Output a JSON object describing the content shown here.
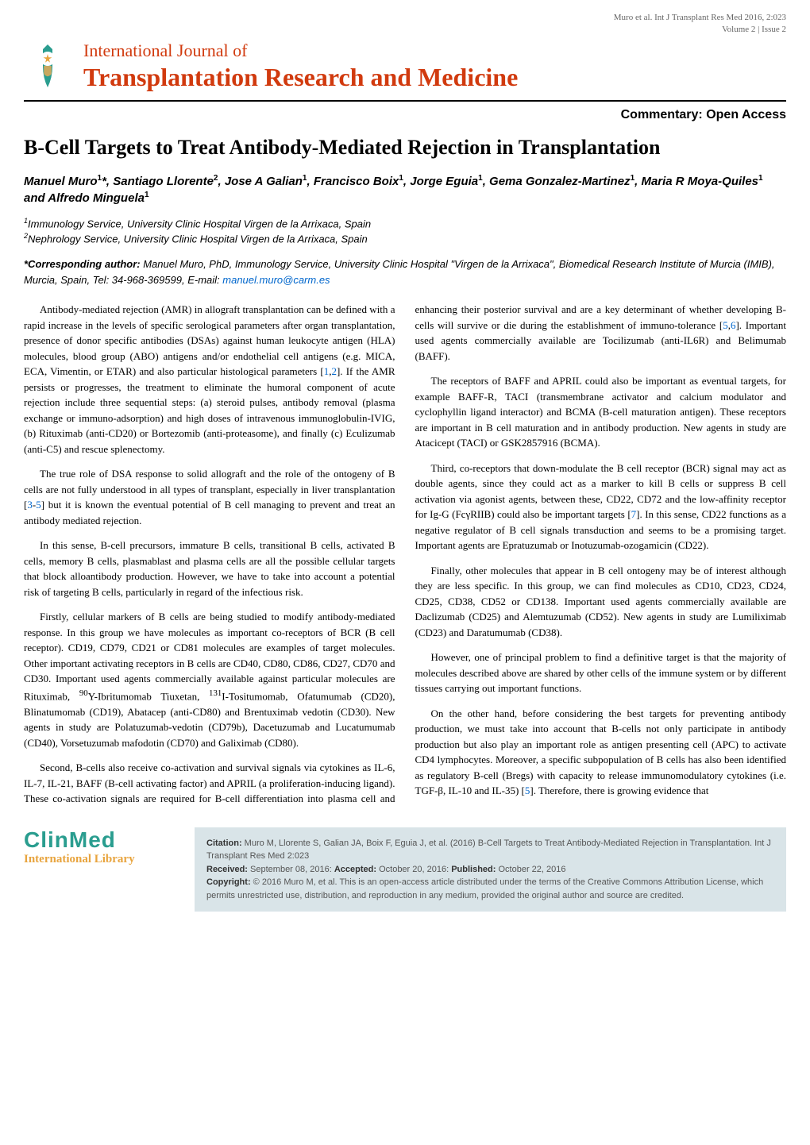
{
  "header": {
    "citation_line": "Muro et al. Int J Transplant Res Med 2016, 2:023",
    "volume_issue": "Volume 2 | Issue 2"
  },
  "journal": {
    "prefix": "International Journal of",
    "main": "Transplantation Research and Medicine",
    "logo_colors": {
      "badge": "#2a9d8f",
      "star": "#e8a43e"
    }
  },
  "article_type": "Commentary: Open Access",
  "title": "B-Cell Targets to Treat Antibody-Mediated Rejection in Transplantation",
  "authors_html": "Manuel Muro<sup>1</sup>*, Santiago Llorente<sup>2</sup>, Jose A Galian<sup>1</sup>, Francisco Boix<sup>1</sup>, Jorge Eguia<sup>1</sup>, Gema Gonzalez-Martinez<sup>1</sup>, Maria R Moya-Quiles<sup>1</sup> and Alfredo Minguela<sup>1</sup>",
  "affiliations": [
    {
      "num": "1",
      "text": "Immunology Service, University Clinic Hospital Virgen de la Arrixaca, Spain"
    },
    {
      "num": "2",
      "text": "Nephrology Service, University Clinic Hospital Virgen de la Arrixaca, Spain"
    }
  ],
  "corresponding": {
    "label": "*Corresponding author:",
    "text": " Manuel Muro, PhD, Immunology Service, University Clinic Hospital \"Virgen de la Arrixaca\", Biomedical Research Institute of Murcia (IMIB), Murcia, Spain, Tel: 34-968-369599, E-mail: ",
    "email": "manuel.muro@carm.es"
  },
  "body": {
    "p1": "Antibody-mediated rejection (AMR) in allograft transplantation can be defined with a rapid increase in the levels of specific serological parameters after organ transplantation, presence of donor specific antibodies (DSAs) against human leukocyte antigen (HLA) molecules, blood group (ABO) antigens and/or endothelial cell antigens (e.g. MICA, ECA, Vimentin, or ETAR) and also particular histological parameters [1,2]. If the AMR persists or progresses, the treatment to eliminate the humoral component of acute rejection include three sequential steps: (a) steroid pulses, antibody removal (plasma exchange or immuno-adsorption) and high doses of intravenous immunoglobulin-IVIG, (b) Rituximab (anti-CD20) or Bortezomib (anti-proteasome), and finally (c) Eculizumab (anti-C5) and rescue splenectomy.",
    "p2": "The true role of DSA response to solid allograft and the role of the ontogeny of B cells are not fully understood in all types of transplant, especially in liver transplantation [3-5] but it is known the eventual potential of B cell managing to prevent and treat an antibody mediated rejection.",
    "p3": "In this sense, B-cell precursors, immature B cells, transitional B cells, activated B cells, memory B cells, plasmablast and plasma cells are all the possible cellular targets that block alloantibody production. However, we have to take into account a potential risk of targeting B cells, particularly in regard of the infectious risk.",
    "p4": "Firstly, cellular markers of B cells are being studied to modify antibody-mediated response. In this group we have molecules as important co-receptors of BCR (B cell receptor). CD19, CD79, CD21 or CD81 molecules are examples of target molecules. Other important activating receptors in B cells are CD40, CD80, CD86, CD27, CD70 and CD30. Important used agents commercially available against particular molecules are Rituximab, 90Y-Ibritumomab Tiuxetan, 131I-Tositumomab, Ofatumumab (CD20), Blinatumomab (CD19), Abatacep (anti-CD80) and Brentuximab vedotin (CD30). New agents in study are Polatuzumab-vedotin (CD79b), Dacetuzumab and Lucatumumab (CD40), Vorsetuzumab mafodotin (CD70) and Galiximab (CD80).",
    "p5": "Second, B-cells also receive co-activation and survival signals via cytokines as IL-6, IL-7, IL-21, BAFF (B-cell activating factor) and APRIL (a proliferation-inducing ligand). These co-activation signals are required for B-cell differentiation into plasma cell and enhancing their posterior survival and are a key determinant of whether developing B-cells will survive or die during the establishment of immuno-tolerance [5,6]. Important used agents commercially available are Tocilizumab (anti-IL6R) and Belimumab (BAFF).",
    "p6": "The receptors of BAFF and APRIL could also be important as eventual targets, for example BAFF-R, TACI (transmembrane activator and calcium modulator and cyclophyllin ligand interactor) and BCMA (B-cell maturation antigen). These receptors are important in B cell maturation and in antibody production. New agents in study are Atacicept (TACI) or GSK2857916 (BCMA).",
    "p7": "Third, co-receptors that down-modulate the B cell receptor (BCR) signal may act as double agents, since they could act as a marker to kill B cells or suppress B cell activation via agonist agents, between these, CD22, CD72 and the low-affinity receptor for Ig-G (FcγRIIB) could also be important targets [7]. In this sense, CD22 functions as a negative regulator of B cell signals transduction and seems to be a promising target. Important agents are Epratuzumab or Inotuzumab-ozogamicin (CD22).",
    "p8": "Finally, other molecules that appear in B cell ontogeny may be of interest although they are less specific. In this group, we can find molecules as CD10, CD23, CD24, CD25, CD38, CD52 or CD138. Important used agents commercially available are Daclizumab (CD25) and Alemtuzumab (CD52). New agents in study are Lumiliximab (CD23) and Daratumumab (CD38).",
    "p9": "However, one of principal problem to find a definitive target is that the majority of molecules described above are shared by other cells of the immune system or by different tissues carrying out important functions.",
    "p10": "On the other hand, before considering the best targets for preventing antibody production, we must take into account that B-cells not only participate in antibody production but also play an important role as antigen presenting cell (APC) to activate CD4 lymphocytes. Moreover, a specific subpopulation of B cells has also been identified as regulatory B-cell (Bregs) with capacity to release immunomodulatory cytokines (i.e. TGF-β, IL-10 and IL-35) [5]. Therefore, there is growing evidence that"
  },
  "footer": {
    "logo_main": "ClinMed",
    "logo_sub": "International Library",
    "citation_label": "Citation:",
    "citation_text": " Muro M, Llorente S, Galian JA, Boix F, Eguia J, et al. (2016) B-Cell Targets to Treat Antibody-Mediated Rejection in Transplantation. Int J Transplant Res Med 2:023",
    "received_label": "Received:",
    "received_text": " September 08, 2016: ",
    "accepted_label": "Accepted:",
    "accepted_text": " October 20, 2016: ",
    "published_label": "Published:",
    "published_text": " October 22, 2016",
    "copyright_label": "Copyright:",
    "copyright_text": " © 2016 Muro M, et al. This is an open-access article distributed under the terms of the Creative Commons Attribution License, which permits unrestricted use, distribution, and reproduction in any medium, provided the original author and source are credited."
  },
  "colors": {
    "journal_red": "#d13a0e",
    "link_blue": "#0066cc",
    "footer_bg": "#d9e4e8",
    "clinmed_green": "#2a9d8f",
    "clinmed_amber": "#e8a43e",
    "text_gray": "#666666"
  }
}
